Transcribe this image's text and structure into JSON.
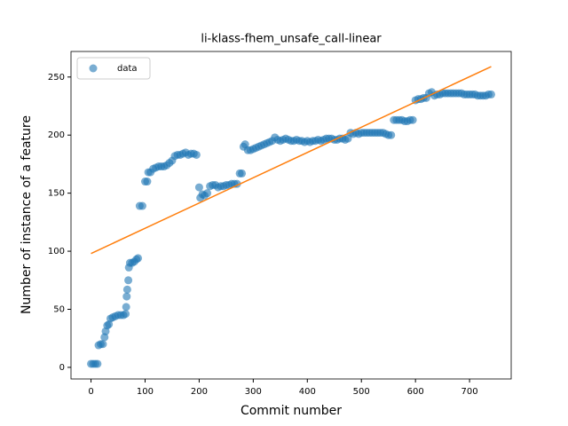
{
  "chart_data": {
    "type": "scatter",
    "title": "li-klass-fhem_unsafe_call-linear",
    "xlabel": "Commit number",
    "ylabel": "Number of instance of a feature",
    "xlim": [
      -37,
      777
    ],
    "ylim": [
      -10,
      272
    ],
    "xticks": [
      0,
      100,
      200,
      300,
      400,
      500,
      600,
      700
    ],
    "yticks": [
      0,
      50,
      100,
      150,
      200,
      250
    ],
    "legend": "upper left",
    "series": [
      {
        "name": "data",
        "color": "#1f77b4",
        "x": [
          0,
          4,
          8,
          12,
          14,
          18,
          22,
          25,
          27,
          30,
          33,
          36,
          40,
          45,
          50,
          55,
          60,
          64,
          65,
          66,
          67,
          69,
          70,
          72,
          76,
          80,
          84,
          87,
          90,
          95,
          100,
          104,
          106,
          110,
          115,
          120,
          125,
          130,
          135,
          140,
          145,
          150,
          155,
          160,
          165,
          170,
          175,
          180,
          185,
          190,
          195,
          200,
          202,
          206,
          210,
          215,
          220,
          225,
          230,
          235,
          240,
          245,
          250,
          255,
          260,
          265,
          270,
          275,
          279,
          282,
          285,
          290,
          295,
          300,
          305,
          310,
          315,
          320,
          325,
          330,
          335,
          340,
          345,
          350,
          355,
          360,
          365,
          370,
          375,
          380,
          385,
          390,
          395,
          400,
          405,
          410,
          415,
          420,
          425,
          430,
          435,
          440,
          445,
          450,
          455,
          460,
          465,
          470,
          475,
          480,
          485,
          490,
          495,
          500,
          505,
          510,
          515,
          520,
          525,
          530,
          535,
          540,
          545,
          550,
          555,
          560,
          565,
          570,
          575,
          580,
          585,
          590,
          595,
          600,
          605,
          610,
          615,
          620,
          625,
          630,
          635,
          640,
          645,
          650,
          655,
          660,
          665,
          670,
          675,
          680,
          685,
          690,
          695,
          700,
          705,
          710,
          715,
          720,
          725,
          730,
          735,
          740
        ],
        "values": [
          3,
          3,
          3,
          3,
          19,
          20,
          20,
          26,
          31,
          36,
          37,
          42,
          43,
          44,
          45,
          45,
          45,
          46,
          52,
          61,
          67,
          75,
          86,
          90,
          90,
          91,
          93,
          94,
          139,
          139,
          160,
          160,
          168,
          168,
          171,
          172,
          173,
          173,
          173,
          174,
          176,
          178,
          182,
          183,
          183,
          184,
          185,
          183,
          184,
          184,
          183,
          155,
          146,
          149,
          148,
          150,
          156,
          157,
          157,
          155,
          156,
          156,
          157,
          157,
          158,
          158,
          158,
          167,
          167,
          190,
          192,
          187,
          187,
          188,
          189,
          190,
          191,
          192,
          193,
          194,
          195,
          198,
          196,
          195,
          196,
          197,
          196,
          195,
          195,
          196,
          195,
          195,
          194,
          195,
          194,
          195,
          195,
          196,
          195,
          196,
          197,
          197,
          197,
          196,
          196,
          197,
          197,
          196,
          197,
          202,
          201,
          202,
          201,
          202,
          202,
          202,
          202,
          202,
          202,
          202,
          202,
          202,
          201,
          200,
          200,
          213,
          213,
          213,
          213,
          212,
          212,
          213,
          213,
          230,
          231,
          231,
          232,
          232,
          236,
          237,
          234,
          235,
          235,
          236,
          236,
          236,
          236,
          236,
          236,
          236,
          236,
          235,
          235,
          235,
          235,
          235,
          234,
          234,
          234,
          234,
          235,
          235
        ]
      }
    ],
    "fit": {
      "color": "#ff7f0e",
      "x": [
        0,
        740
      ],
      "values": [
        98,
        259
      ]
    }
  }
}
